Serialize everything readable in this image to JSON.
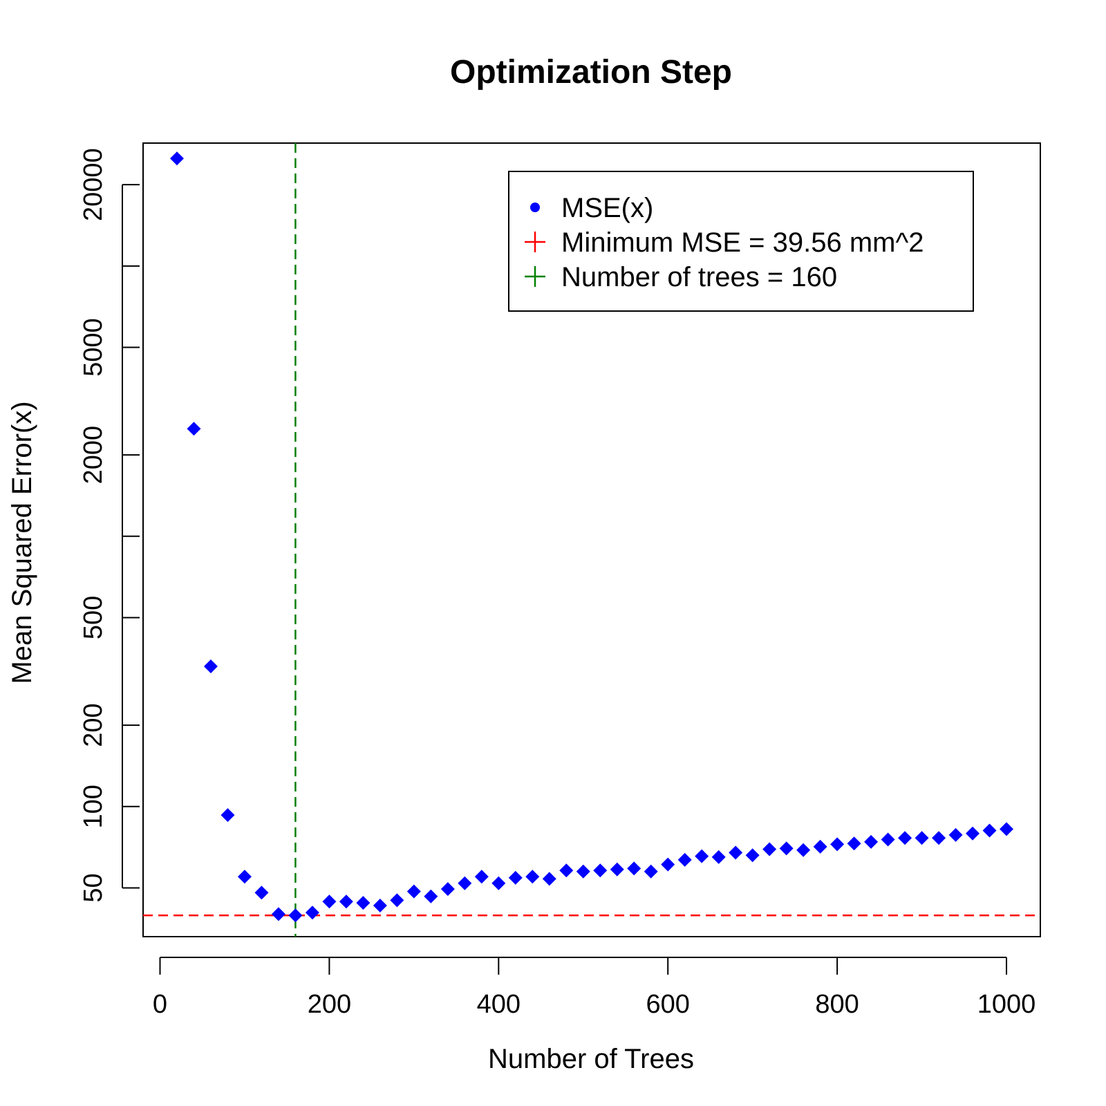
{
  "chart_data": {
    "type": "scatter",
    "title": "Optimization Step",
    "xlabel": "Number of Trees",
    "ylabel": "Mean Squared Error(x)",
    "xlim": [
      -20,
      1040
    ],
    "ylim": [
      33,
      28500
    ],
    "y_scale": "log",
    "grid": false,
    "x_ticks": [
      0,
      200,
      400,
      600,
      800,
      1000
    ],
    "x_tick_labels": [
      "0",
      "200",
      "400",
      "600",
      "800",
      "1000"
    ],
    "y_ticks": [
      50,
      100,
      200,
      500,
      1000,
      2000,
      5000,
      10000,
      20000
    ],
    "y_tick_labels": [
      "50",
      "100",
      "200",
      "500",
      "",
      "2000",
      "5000",
      "",
      "20000"
    ],
    "series": [
      {
        "name": "MSE(x)",
        "color": "#0000ff",
        "marker": "diamond",
        "x": [
          20,
          40,
          60,
          80,
          100,
          120,
          140,
          160,
          180,
          200,
          220,
          240,
          260,
          280,
          300,
          320,
          340,
          360,
          380,
          400,
          420,
          440,
          460,
          480,
          500,
          520,
          540,
          560,
          580,
          600,
          620,
          640,
          660,
          680,
          700,
          720,
          740,
          760,
          780,
          800,
          820,
          840,
          860,
          880,
          900,
          920,
          940,
          960,
          980,
          1000
        ],
        "y": [
          25000,
          2500,
          330,
          93,
          55,
          48,
          40,
          39.56,
          40.5,
          44.5,
          44.5,
          44,
          43,
          45,
          48.5,
          46.5,
          49.5,
          52,
          55,
          52,
          54.5,
          55,
          54,
          58,
          57.5,
          58,
          58.5,
          59,
          57.5,
          61,
          63.5,
          65.5,
          65,
          67.5,
          66,
          69.5,
          70,
          69,
          71,
          72.5,
          73,
          74,
          75.5,
          76.5,
          76.5,
          76.5,
          78.5,
          79.5,
          81.5,
          82.5
        ]
      }
    ],
    "reference_lines": [
      {
        "orientation": "horizontal",
        "value": 39.56,
        "color": "#ff0000",
        "style": "dashed"
      },
      {
        "orientation": "vertical",
        "value": 160,
        "color": "#008000",
        "style": "dashed"
      }
    ],
    "legend": {
      "placement": "top-right",
      "entries": [
        {
          "label": "MSE(x)",
          "symbol": "dot",
          "color": "#0000ff"
        },
        {
          "label": "Minimum MSE =  39.56  mm^2",
          "symbol": "plus",
          "color": "#ff0000"
        },
        {
          "label": "Number of trees = 160",
          "symbol": "plus",
          "color": "#008000"
        }
      ]
    }
  }
}
